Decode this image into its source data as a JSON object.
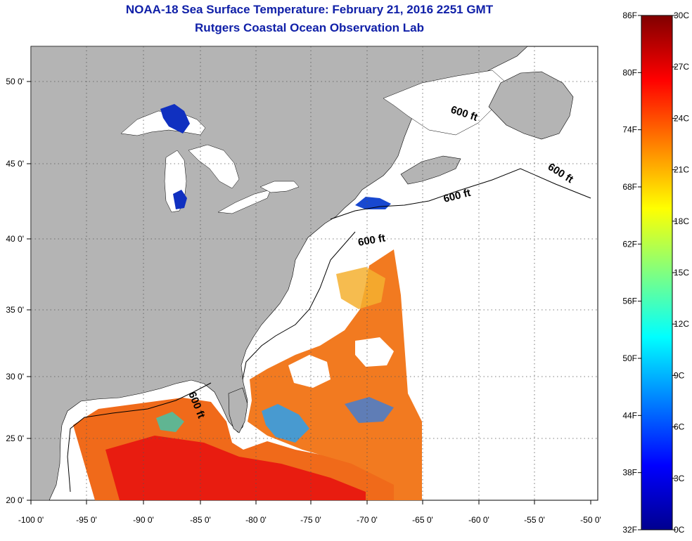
{
  "title": {
    "line1": "NOAA-18 Sea Surface Temperature:  February 21, 2016 2251 GMT",
    "line2": "Rutgers Coastal Ocean Observation Lab"
  },
  "colors": {
    "land": "#b4b4b4",
    "ocean_no_data": "#ffffff",
    "title": "#1020a8",
    "grid": "#555555"
  },
  "axes": {
    "lon_labels": [
      "-100 0'",
      "-95 0'",
      "-90 0'",
      "-85 0'",
      "-80 0'",
      "-75 0'",
      "-70 0'",
      "-65 0'",
      "-60 0'",
      "-55 0'",
      "-50 0'"
    ],
    "lat_labels": [
      "20 0'",
      "25 0'",
      "30 0'",
      "35 0'",
      "40 0'",
      "45 0'",
      "50 0'"
    ],
    "lon_range": [
      -100,
      -50
    ],
    "lat_range": [
      20,
      52.5
    ]
  },
  "depth_contour": {
    "label": "600 ft",
    "count": 5
  },
  "colorbar": {
    "fahrenheit": [
      "86F",
      "80F",
      "74F",
      "68F",
      "62F",
      "56F",
      "50F",
      "44F",
      "38F",
      "32F"
    ],
    "celsius": [
      "30C",
      "27C",
      "24C",
      "21C",
      "18C",
      "15C",
      "12C",
      "9C",
      "6C",
      "3C",
      "0C"
    ],
    "range_c": [
      0,
      30
    ],
    "gradient": [
      "#00008f",
      "#0000ff",
      "#0080ff",
      "#00ffff",
      "#80ff80",
      "#ffff00",
      "#ff8000",
      "#ff0000",
      "#800000"
    ]
  }
}
